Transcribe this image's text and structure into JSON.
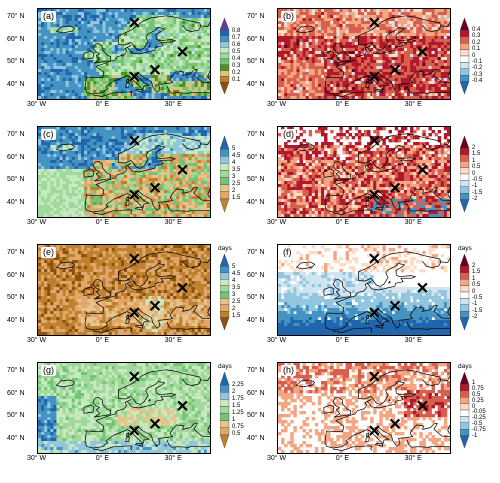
{
  "axes": {
    "lat_labels": [
      "70° N",
      "60° N",
      "50° N",
      "40° N"
    ],
    "lon_labels": [
      "30° W",
      "0° E",
      "30° E"
    ]
  },
  "panels": [
    {
      "label": "(a)",
      "scheme": "brbg",
      "unit": "",
      "ticks": [
        "0.8",
        "0.7",
        "0.6",
        "0.5",
        "0.4",
        "0.3",
        "0.2",
        "0.1"
      ],
      "colors": [
        "#5e3c99",
        "#2166ac",
        "#4393c3",
        "#92c5de",
        "#c7e9c0",
        "#a1d99b",
        "#74c476",
        "#4d9221",
        "#dfc27d",
        "#bf812d",
        "#8c510a"
      ],
      "field": "ocean-blue-land-green"
    },
    {
      "label": "(b)",
      "scheme": "rdbu",
      "unit": "",
      "ticks": [
        "0.4",
        "0.3",
        "0.2",
        "0.1",
        "0",
        "-0.1",
        "-0.2",
        "-0.3",
        "-0.4"
      ],
      "colors": [
        "#67001f",
        "#b2182b",
        "#d6604d",
        "#f4a582",
        "#fddbc7",
        "#ffffff",
        "#d1e5f0",
        "#92c5de",
        "#4393c3",
        "#2166ac"
      ],
      "field": "red-dominant"
    },
    {
      "label": "(c)",
      "scheme": "brbg",
      "unit": "",
      "ticks": [
        "5",
        "4.5",
        "4",
        "3.5",
        "3",
        "2.5",
        "2",
        "1.5"
      ],
      "colors": [
        "#2166ac",
        "#4393c3",
        "#92c5de",
        "#c7e9c0",
        "#a1d99b",
        "#74c476",
        "#e6c48a",
        "#dfa86a",
        "#bf812d"
      ],
      "field": "north-blue-south-tan"
    },
    {
      "label": "(d)",
      "scheme": "rdbu",
      "unit": "",
      "ticks": [
        "2",
        "1.5",
        "1",
        "0.5",
        "0",
        "-0.5",
        "-1",
        "-1.5",
        "-2"
      ],
      "colors": [
        "#67001f",
        "#b2182b",
        "#d6604d",
        "#f4a582",
        "#fddbc7",
        "#ffffff",
        "#d1e5f0",
        "#92c5de",
        "#4393c3",
        "#2166ac"
      ],
      "field": "red-scattered"
    },
    {
      "label": "(e)",
      "scheme": "brbg",
      "unit": "days",
      "ticks": [
        "5",
        "4.5",
        "4",
        "3.5",
        "3",
        "2.5",
        "2",
        "1.5"
      ],
      "colors": [
        "#2166ac",
        "#4393c3",
        "#92c5de",
        "#c7e9c0",
        "#a1d99b",
        "#74c476",
        "#e6c48a",
        "#dfa86a",
        "#bf812d",
        "#8c510a"
      ],
      "field": "brown-dominant"
    },
    {
      "label": "(f)",
      "scheme": "rdbu",
      "unit": "days",
      "ticks": [
        "2",
        "1.5",
        "1",
        "0.5",
        "0",
        "-0.5",
        "-1",
        "-1.5",
        "-2"
      ],
      "colors": [
        "#67001f",
        "#b2182b",
        "#d6604d",
        "#f4a582",
        "#fddbc7",
        "#ffffff",
        "#d1e5f0",
        "#92c5de",
        "#4393c3",
        "#2166ac"
      ],
      "field": "blue-south"
    },
    {
      "label": "(g)",
      "scheme": "brbg",
      "unit": "days",
      "ticks": [
        "2.25",
        "2",
        "1.75",
        "1.5",
        "1.25",
        "1",
        "0.75",
        "0.5"
      ],
      "colors": [
        "#2166ac",
        "#4393c3",
        "#92c5de",
        "#c7e9c0",
        "#a1d99b",
        "#74c476",
        "#e6c48a",
        "#dfa86a",
        "#bf812d"
      ],
      "field": "green-dominant"
    },
    {
      "label": "(h)",
      "scheme": "rdbu",
      "unit": "days",
      "ticks": [
        "1",
        "0.75",
        "0.5",
        "0.25",
        "0",
        "-0.05",
        "-0.25",
        "-0.5",
        "-0.75",
        "-1"
      ],
      "colors": [
        "#67001f",
        "#b2182b",
        "#d6604d",
        "#f4a582",
        "#fddbc7",
        "#ffffff",
        "#d1e5f0",
        "#92c5de",
        "#4393c3",
        "#2166ac"
      ],
      "field": "sparse-red"
    }
  ],
  "markers": [
    {
      "lon": 12,
      "lat": 68
    },
    {
      "lon": 33,
      "lat": 55
    },
    {
      "lon": 21,
      "lat": 47
    },
    {
      "lon": 12,
      "lat": 44
    }
  ]
}
